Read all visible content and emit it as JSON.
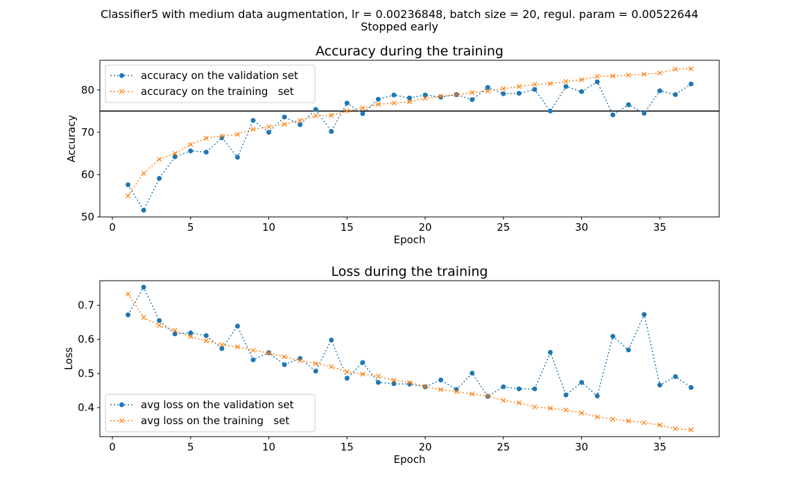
{
  "figure": {
    "suptitle_line1": "Classifier5 with medium data augmentation, lr = 0.00236848, batch size = 20, regul. param = 0.00522644",
    "suptitle_line2": "Stopped early"
  },
  "chart_data": [
    {
      "type": "line",
      "title": "Accuracy during the training",
      "xlabel": "Epoch",
      "ylabel": "Accuracy",
      "xlim": [
        -0.8,
        38.8
      ],
      "ylim": [
        50,
        87
      ],
      "xticks": [
        0,
        5,
        10,
        15,
        20,
        25,
        30,
        35
      ],
      "yticks": [
        50,
        60,
        70,
        80
      ],
      "hline": 75,
      "legend_position": "upper-left",
      "grid": false,
      "x": [
        1,
        2,
        3,
        4,
        5,
        6,
        7,
        8,
        9,
        10,
        11,
        12,
        13,
        14,
        15,
        16,
        17,
        18,
        19,
        20,
        21,
        22,
        23,
        24,
        25,
        26,
        27,
        28,
        29,
        30,
        31,
        32,
        33,
        34,
        35,
        36,
        37
      ],
      "series": [
        {
          "name": "accuracy on the validation set",
          "color": "#1f77b4",
          "marker": "circle",
          "values": [
            57.6,
            51.6,
            59.1,
            64.2,
            65.6,
            65.3,
            68.7,
            64.1,
            72.8,
            70.0,
            73.6,
            71.8,
            75.4,
            70.2,
            76.9,
            74.4,
            77.8,
            78.8,
            78.1,
            78.8,
            78.3,
            78.9,
            77.7,
            80.6,
            79.1,
            79.2,
            80.1,
            75.0,
            80.8,
            79.6,
            81.9,
            74.1,
            76.5,
            74.5,
            79.8,
            78.9,
            81.4
          ]
        },
        {
          "name": "accuracy on the training   set",
          "color": "#ff7f0e",
          "marker": "x",
          "values": [
            55.0,
            60.3,
            63.6,
            65.0,
            67.1,
            68.6,
            69.1,
            69.5,
            70.7,
            71.3,
            71.9,
            72.8,
            73.9,
            74.0,
            75.0,
            75.7,
            76.6,
            76.9,
            77.2,
            78.0,
            78.5,
            78.9,
            79.4,
            79.7,
            80.3,
            80.8,
            81.3,
            81.5,
            82.0,
            82.4,
            83.2,
            83.3,
            83.5,
            83.7,
            84.0,
            84.9,
            85.0
          ]
        }
      ]
    },
    {
      "type": "line",
      "title": "Loss during the training",
      "xlabel": "Epoch",
      "ylabel": "Loss",
      "xlim": [
        -0.8,
        38.8
      ],
      "ylim": [
        0.315,
        0.772
      ],
      "xticks": [
        0,
        5,
        10,
        15,
        20,
        25,
        30,
        35
      ],
      "yticks": [
        0.4,
        0.5,
        0.6,
        0.7
      ],
      "ytick_labels": [
        "0.4",
        "0.5",
        "0.6",
        "0.7"
      ],
      "legend_position": "lower-left",
      "grid": false,
      "x": [
        1,
        2,
        3,
        4,
        5,
        6,
        7,
        8,
        9,
        10,
        11,
        12,
        13,
        14,
        15,
        16,
        17,
        18,
        19,
        20,
        21,
        22,
        23,
        24,
        25,
        26,
        27,
        28,
        29,
        30,
        31,
        32,
        33,
        34,
        35,
        36,
        37
      ],
      "series": [
        {
          "name": "avg loss on the validation set",
          "color": "#1f77b4",
          "marker": "circle",
          "values": [
            0.672,
            0.753,
            0.655,
            0.616,
            0.619,
            0.611,
            0.573,
            0.639,
            0.54,
            0.561,
            0.526,
            0.544,
            0.507,
            0.598,
            0.486,
            0.532,
            0.474,
            0.47,
            0.469,
            0.461,
            0.481,
            0.453,
            0.501,
            0.433,
            0.461,
            0.455,
            0.455,
            0.562,
            0.437,
            0.474,
            0.434,
            0.609,
            0.569,
            0.673,
            0.466,
            0.491,
            0.459
          ]
        },
        {
          "name": "avg loss on the training   set",
          "color": "#ff7f0e",
          "marker": "x",
          "values": [
            0.733,
            0.664,
            0.641,
            0.626,
            0.608,
            0.596,
            0.584,
            0.578,
            0.568,
            0.56,
            0.549,
            0.538,
            0.529,
            0.52,
            0.505,
            0.498,
            0.492,
            0.48,
            0.474,
            0.462,
            0.453,
            0.447,
            0.44,
            0.434,
            0.421,
            0.414,
            0.402,
            0.398,
            0.393,
            0.384,
            0.373,
            0.366,
            0.361,
            0.356,
            0.349,
            0.338,
            0.335
          ]
        }
      ]
    }
  ]
}
